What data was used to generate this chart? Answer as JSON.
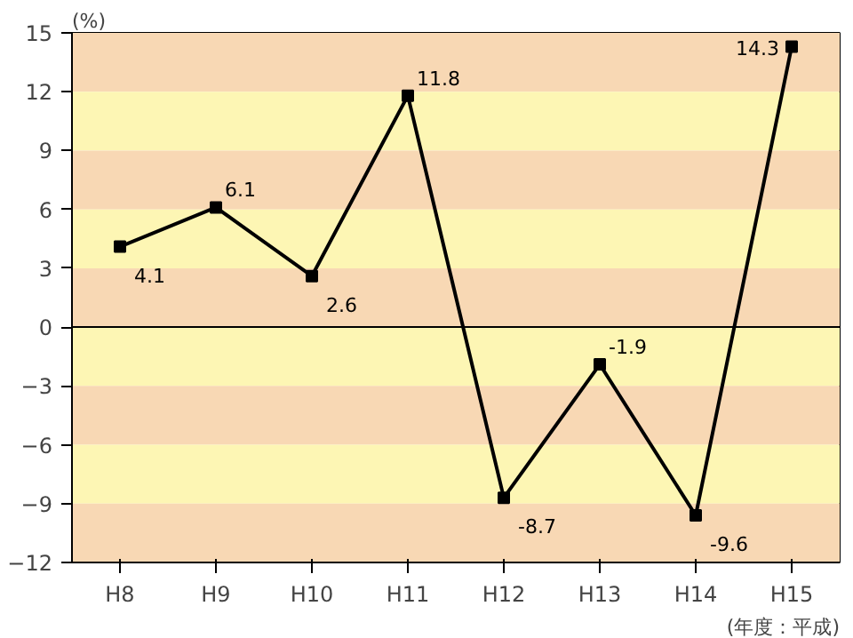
{
  "chart_data": {
    "type": "line",
    "ylabel": "(%)",
    "xlabel": "(年度：平成)",
    "categories": [
      "H8",
      "H9",
      "H10",
      "H11",
      "H12",
      "H13",
      "H14",
      "H15"
    ],
    "values": [
      4.1,
      6.1,
      2.6,
      11.8,
      -8.7,
      -1.9,
      -9.6,
      14.3
    ],
    "color": "#000000",
    "marker": "square",
    "line_style": "solid",
    "data_labels": true,
    "ylim": [
      -12,
      15
    ],
    "yticks": [
      -12,
      -9,
      -6,
      -3,
      0,
      3,
      6,
      9,
      12,
      15
    ],
    "ref_lines": [
      {
        "axis": "y",
        "value": 0,
        "color": "#000000",
        "line_style": "solid"
      }
    ],
    "bands": [
      {
        "axis": "y",
        "from": 12,
        "to": 15,
        "color": "#f8d8b4"
      },
      {
        "axis": "y",
        "from": 9,
        "to": 12,
        "color": "#fdf6b4"
      },
      {
        "axis": "y",
        "from": 6,
        "to": 9,
        "color": "#f8d8b4"
      },
      {
        "axis": "y",
        "from": 3,
        "to": 6,
        "color": "#fdf6b4"
      },
      {
        "axis": "y",
        "from": 0,
        "to": 3,
        "color": "#f8d8b4"
      },
      {
        "axis": "y",
        "from": -3,
        "to": 0,
        "color": "#fdf6b4"
      },
      {
        "axis": "y",
        "from": -6,
        "to": -3,
        "color": "#f8d8b4"
      },
      {
        "axis": "y",
        "from": -9,
        "to": -6,
        "color": "#fdf6b4"
      },
      {
        "axis": "y",
        "from": -12,
        "to": -9,
        "color": "#f8d8b4"
      }
    ]
  }
}
